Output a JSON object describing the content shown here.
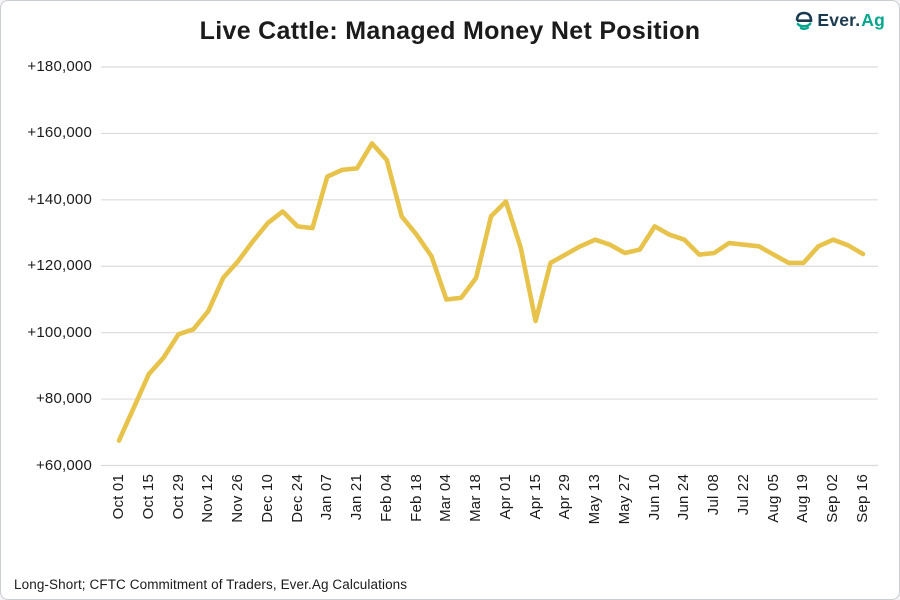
{
  "header": {
    "title": "Live Cattle: Managed Money Net Position",
    "logo": {
      "icon": "everag-e-globe-icon",
      "text_primary": "Ever.",
      "text_secondary": "Ag"
    }
  },
  "footer": {
    "source_note": "Long-Short; CFTC Commitment of Traders, Ever.Ag Calculations"
  },
  "colors": {
    "line": "#E8C34B",
    "grid": "#DCDCDC",
    "text": "#1B1B1B",
    "logo_navy": "#1B3A50",
    "logo_teal": "#00A68C",
    "border": "#C8CDD2",
    "background": "#FFFFFF"
  },
  "chart_data": {
    "type": "line",
    "title": "Live Cattle: Managed Money Net Position",
    "xlabel": "",
    "ylabel": "",
    "legend": "none",
    "grid": "horizontal",
    "ylim": [
      60000,
      180000
    ],
    "x_tick_every": 2,
    "y_ticks": [
      {
        "value": 60000,
        "label": "+60,000"
      },
      {
        "value": 80000,
        "label": "+80,000"
      },
      {
        "value": 100000,
        "label": "+100,000"
      },
      {
        "value": 120000,
        "label": "+120,000"
      },
      {
        "value": 140000,
        "label": "+140,000"
      },
      {
        "value": 160000,
        "label": "+160,000"
      },
      {
        "value": 180000,
        "label": "+180,000"
      }
    ],
    "x": [
      "Oct 01",
      "Oct 08",
      "Oct 15",
      "Oct 22",
      "Oct 29",
      "Nov 05",
      "Nov 12",
      "Nov 19",
      "Nov 26",
      "Dec 03",
      "Dec 10",
      "Dec 17",
      "Dec 24",
      "Dec 31",
      "Jan 07",
      "Jan 14",
      "Jan 21",
      "Jan 28",
      "Feb 04",
      "Feb 11",
      "Feb 18",
      "Feb 25",
      "Mar 04",
      "Mar 11",
      "Mar 18",
      "Mar 25",
      "Apr 01",
      "Apr 08",
      "Apr 15",
      "Apr 22",
      "Apr 29",
      "May 06",
      "May 13",
      "May 20",
      "May 27",
      "Jun 03",
      "Jun 10",
      "Jun 17",
      "Jun 24",
      "Jul 01",
      "Jul 08",
      "Jul 15",
      "Jul 22",
      "Jul 29",
      "Aug 05",
      "Aug 12",
      "Aug 19",
      "Aug 26",
      "Sep 02",
      "Sep 09",
      "Sep 16"
    ],
    "series": [
      {
        "name": "Managed Money Net Position (Long-Short)",
        "values": [
          67500,
          77500,
          87500,
          92500,
          99500,
          101000,
          106500,
          116500,
          121500,
          127500,
          133000,
          136500,
          132000,
          131500,
          147000,
          149000,
          149500,
          157000,
          152000,
          135000,
          129500,
          123000,
          110000,
          110500,
          116500,
          135000,
          139500,
          125500,
          103500,
          121000,
          123500,
          126000,
          128000,
          126500,
          124000,
          125000,
          132000,
          129500,
          128000,
          123500,
          124000,
          127000,
          126500,
          126000,
          123500,
          121000,
          121000,
          126000,
          128000,
          126300,
          123700
        ]
      }
    ]
  }
}
